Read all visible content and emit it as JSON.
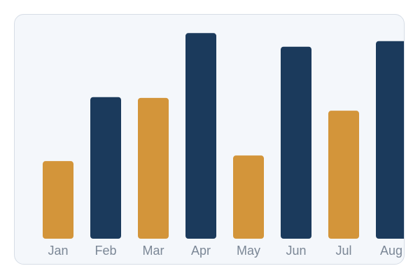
{
  "chart_data": {
    "type": "bar",
    "title": "",
    "xlabel": "",
    "ylabel": "",
    "categories": [
      "Jan",
      "Feb",
      "Mar",
      "Apr",
      "May",
      "Jun",
      "Jul",
      "Aug"
    ],
    "values": [
      97,
      177,
      176,
      257,
      104,
      240,
      160,
      247
    ],
    "ylim": [
      0,
      280
    ],
    "grid": false,
    "bar_colors": [
      "#d3953a",
      "#1b3a5c",
      "#d3953a",
      "#1b3a5c",
      "#d3953a",
      "#1b3a5c",
      "#d3953a",
      "#1b3a5c"
    ]
  }
}
